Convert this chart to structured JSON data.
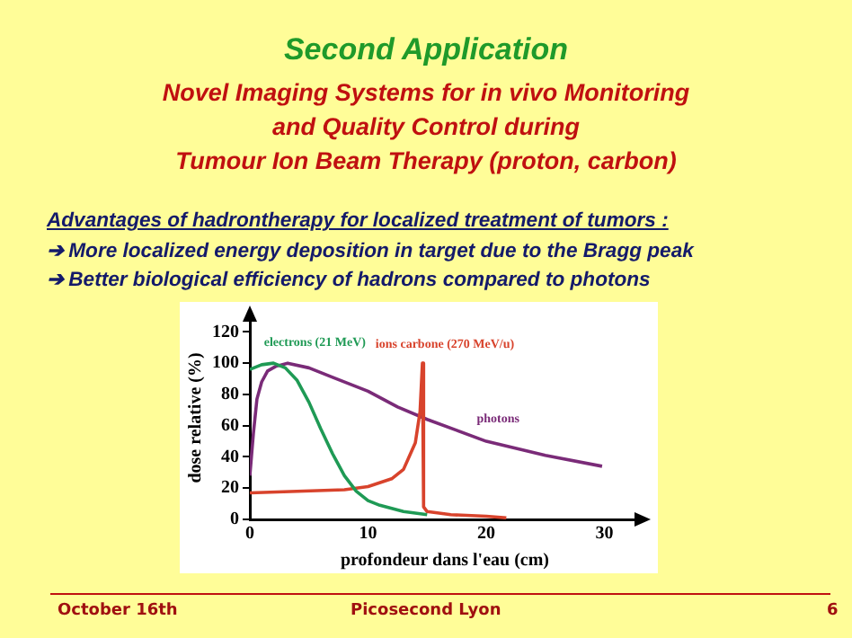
{
  "chart_data": {
    "type": "line",
    "title": "Second Application",
    "subtitle": "Novel Imaging Systems for in vivo Monitoring\nand Quality Control during\nTumour Ion Beam Therapy (proton, carbon)",
    "xlabel": "profondeur dans l'eau (cm)",
    "ylabel": "dose relative (%)",
    "annotations": [
      "Advantages of hadrontherapy for localized treatment of tumors :",
      "➔ More localized energy deposition in target due to the Bragg peak",
      "➔ Better biological efficiency of hadrons compared to photons",
      "October 16th",
      "Picosecond Lyon",
      "6"
    ],
    "xlim": [
      0,
      33
    ],
    "xticks": [
      0,
      10,
      20,
      30
    ],
    "ylim": [
      0,
      130
    ],
    "yticks": [
      0,
      20,
      40,
      60,
      80,
      100,
      120
    ],
    "grid": false,
    "legend": false,
    "marker": "none",
    "line_style": "solid",
    "series": [
      {
        "name": "electrons (21 MeV)",
        "color": "#1f9a55",
        "x": [
          0,
          1,
          2,
          3,
          4,
          5,
          6,
          7,
          8,
          9,
          10,
          11,
          12,
          13,
          14,
          15
        ],
        "values": [
          96,
          99,
          100,
          97,
          89,
          75,
          58,
          42,
          28,
          18,
          12,
          9,
          7,
          5,
          4,
          3
        ]
      },
      {
        "name": "ions carbone (270 MeV/u)",
        "color": "#d8432c",
        "x": [
          0,
          4,
          8,
          10,
          12,
          13,
          14,
          14.4,
          14.6,
          14.7,
          15,
          17,
          20,
          21.7
        ],
        "values": [
          17,
          18,
          19,
          21,
          26,
          32,
          49,
          69,
          100,
          8,
          5,
          3,
          2,
          1
        ]
      },
      {
        "name": "photons",
        "color": "#7a2b78",
        "x": [
          0,
          0.3,
          0.6,
          1,
          1.5,
          2.2,
          3.2,
          5,
          7,
          10,
          12.5,
          15,
          17.5,
          20,
          25,
          29.8
        ],
        "values": [
          28,
          55,
          77,
          88,
          95,
          98,
          100,
          97,
          91,
          82,
          72,
          64,
          57,
          50,
          41,
          34
        ]
      }
    ]
  }
}
